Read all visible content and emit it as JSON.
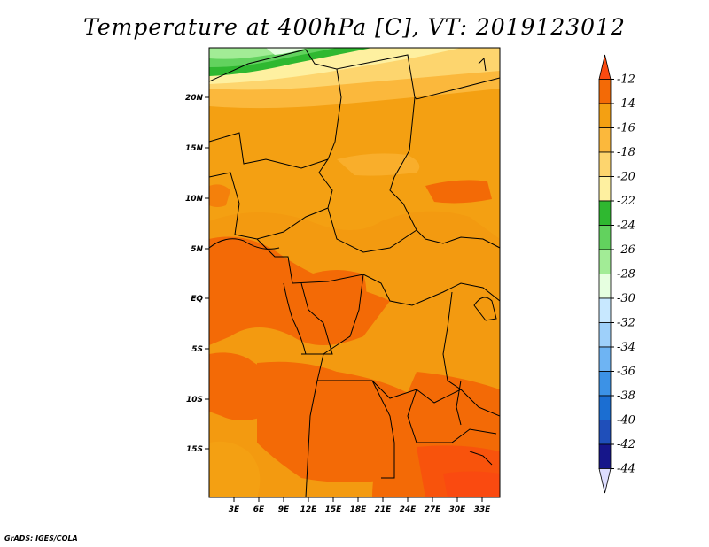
{
  "title": "Temperature at 400hPa [C], VT: 2019123012",
  "credit": "GrADS: IGES/COLA",
  "map": {
    "lat_labels": [
      "20N",
      "15N",
      "10N",
      "5N",
      "EQ",
      "5S",
      "10S",
      "15S"
    ],
    "lon_labels": [
      "3E",
      "6E",
      "9E",
      "12E",
      "15E",
      "18E",
      "21E",
      "24E",
      "27E",
      "30E",
      "33E"
    ]
  },
  "colorbar": {
    "labels": [
      "-12",
      "-14",
      "-16",
      "-18",
      "-20",
      "-22",
      "-24",
      "-26",
      "-28",
      "-30",
      "-32",
      "-34",
      "-36",
      "-38",
      "-40",
      "-42",
      "-44"
    ],
    "colors": [
      "#fa4a10",
      "#f36a06",
      "#f4a012",
      "#fbb83c",
      "#fdd56e",
      "#fef0a0",
      "#2fb830",
      "#62d25e",
      "#a2ec96",
      "#e6ffe0",
      "#c8e8ff",
      "#9ed0fa",
      "#6eb4f3",
      "#3c92e6",
      "#1b6ed2",
      "#1f4fba",
      "#16168a",
      "#dedeff"
    ]
  }
}
